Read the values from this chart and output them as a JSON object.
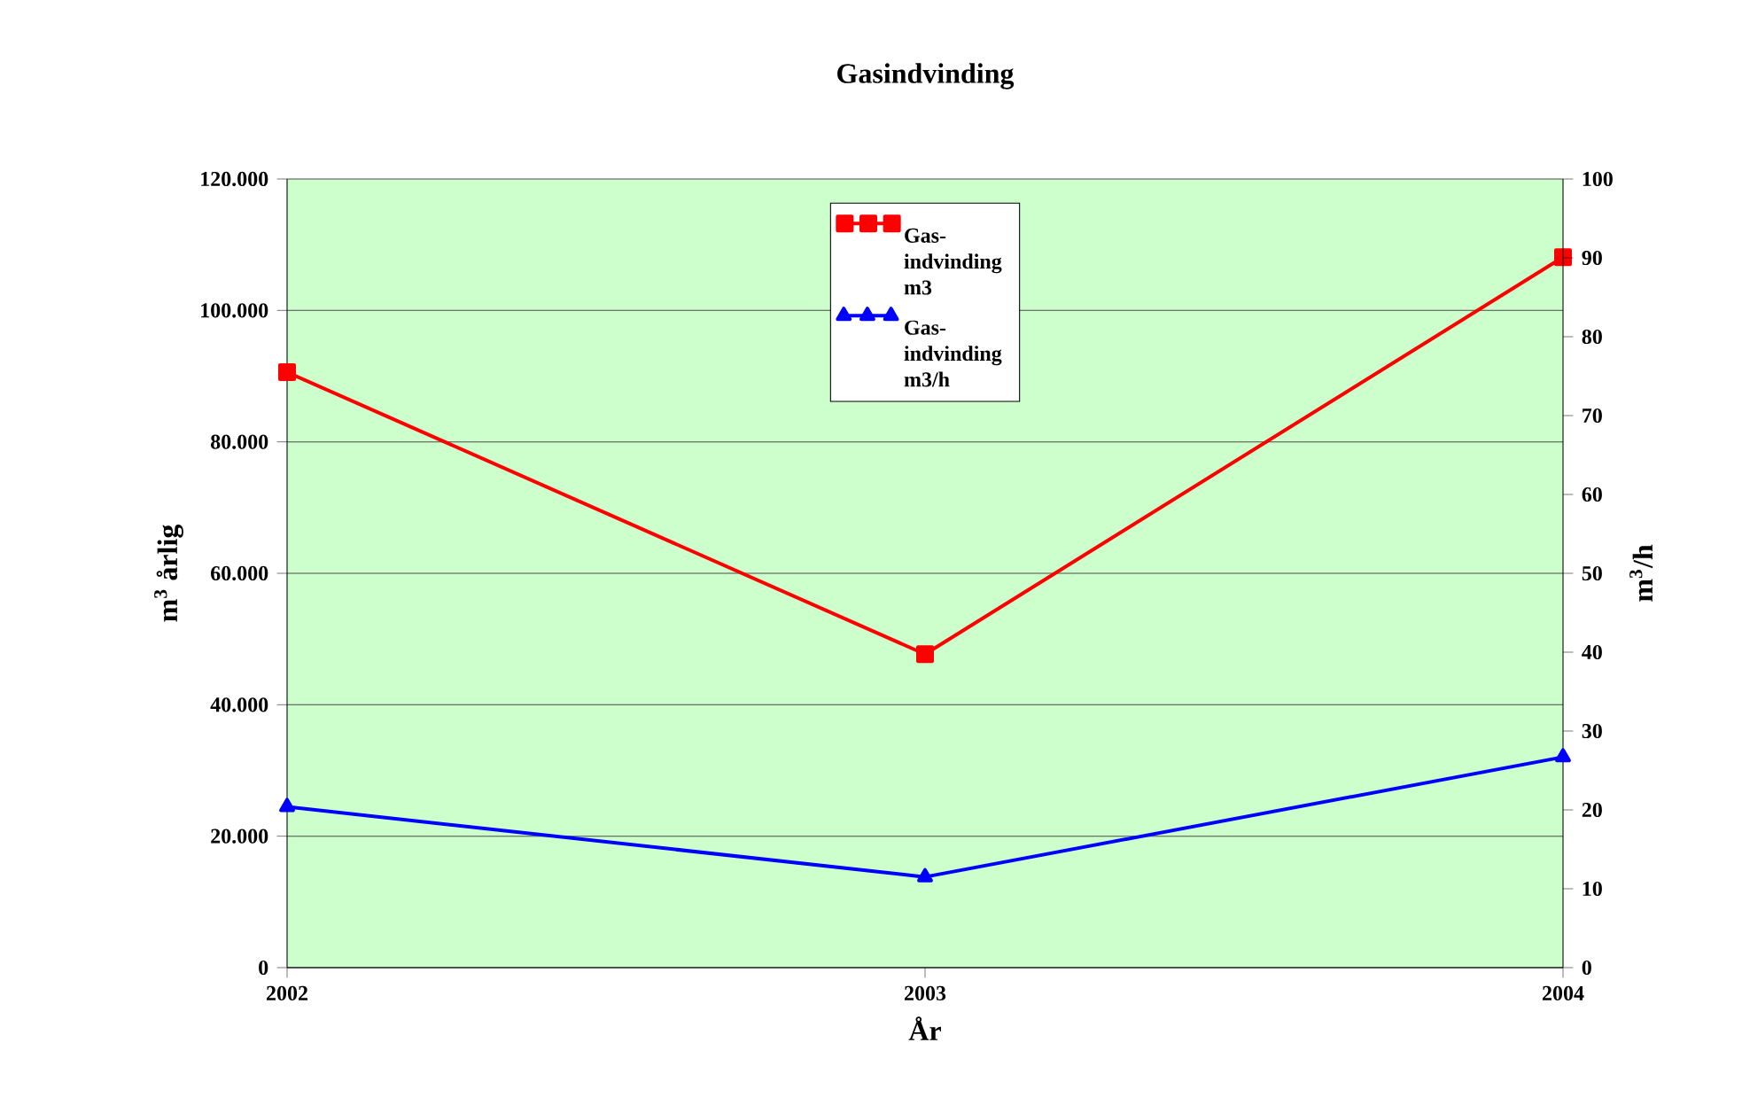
{
  "chart_data": {
    "type": "line",
    "title": "Gasindvinding",
    "xlabel": "År",
    "ylabel": "m$^{3}$ årlig",
    "y2label": "m$^{3}$/h",
    "categories": [
      "2002",
      "2003",
      "2004"
    ],
    "series": [
      {
        "name": "Gas-indvinding m3",
        "color": "#ff0000",
        "marker": "square",
        "values": [
          90600,
          47700,
          108100
        ]
      },
      {
        "name": "Gas-indvinding m3/h",
        "color": "#0000ff",
        "marker": "triangle",
        "axis": "y2",
        "values": [
          20.4,
          11.5,
          26.7
        ]
      }
    ],
    "ylim": [
      0,
      120000
    ],
    "yticks": [
      0,
      {
        "value": 20000,
        "label": "20.000"
      },
      {
        "value": 40000,
        "label": "40.000"
      },
      {
        "value": 60000,
        "label": "60.000"
      },
      {
        "value": 80000,
        "label": "80.000"
      },
      {
        "value": 100000,
        "label": "100.000"
      },
      {
        "value": 120000,
        "label": "120.000"
      }
    ],
    "y2lim": [
      0,
      100
    ],
    "y2ticks": [
      0,
      10,
      20,
      30,
      40,
      50,
      60,
      70,
      80,
      90,
      100
    ],
    "grid": "y",
    "legend": "top",
    "line_style": "solid"
  }
}
